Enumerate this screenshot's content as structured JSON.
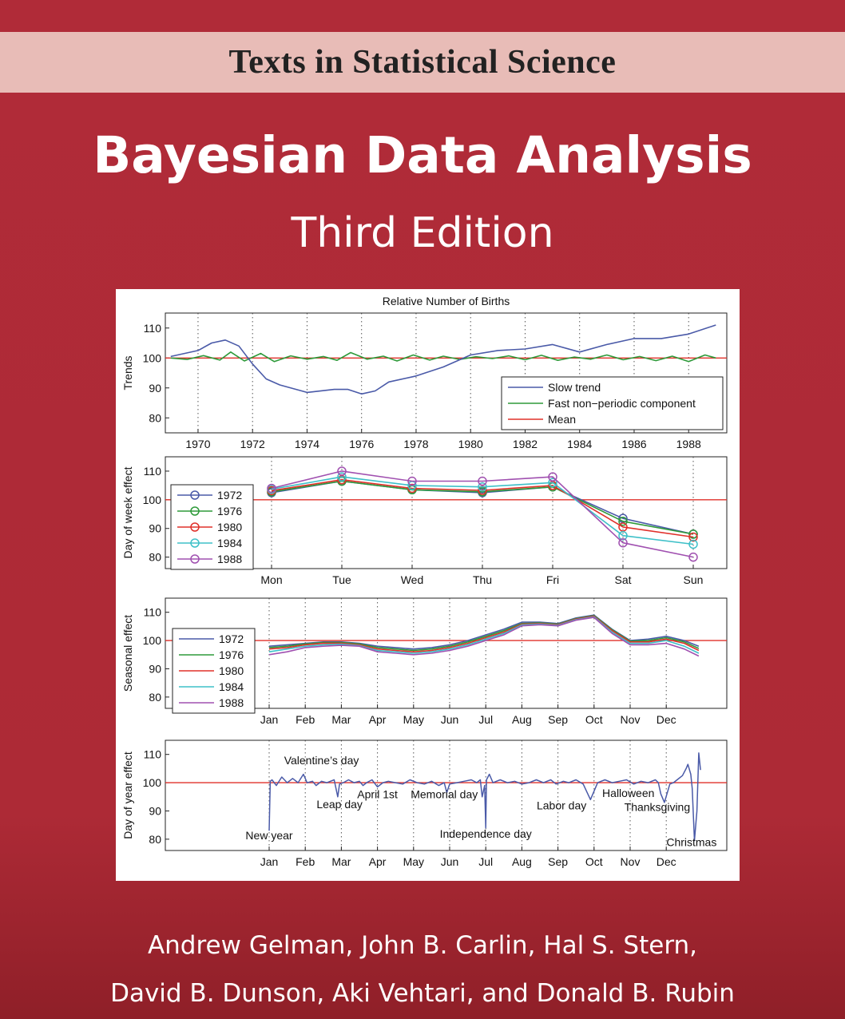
{
  "cover": {
    "series": "Texts in Statistical Science",
    "title": "Bayesian Data Analysis",
    "edition": "Third Edition",
    "authors_line1": "Andrew Gelman, John B. Carlin, Hal S. Stern,",
    "authors_line2": "David B. Dunson, Aki Vehtari, and Donald B. Rubin"
  },
  "colors": {
    "cover_background": "#ad2a36",
    "banner": "#e8bcb7",
    "mean_line": "#e0302a"
  },
  "chart_data": [
    {
      "type": "line",
      "title": "Relative Number of Births",
      "ylabel": "Trends",
      "xlim": [
        1968.8,
        1989.4
      ],
      "ylim": [
        75,
        115
      ],
      "xticks": [
        1970,
        1972,
        1974,
        1976,
        1978,
        1980,
        1982,
        1984,
        1986,
        1988
      ],
      "yticks": [
        80,
        90,
        100,
        110
      ],
      "grid": "vertical dotted",
      "legend_position": "bottom-right",
      "series": [
        {
          "name": "Slow trend",
          "color": "#4a5aa8",
          "x": [
            1969,
            1970,
            1970.5,
            1971,
            1971.5,
            1972,
            1972.5,
            1973,
            1974,
            1975,
            1975.5,
            1976,
            1976.5,
            1977,
            1978,
            1979,
            1980,
            1981,
            1982,
            1983,
            1984,
            1985,
            1986,
            1987,
            1988,
            1989
          ],
          "y": [
            100.5,
            102.5,
            105,
            106,
            104,
            98,
            93,
            91,
            88.5,
            89.5,
            89.5,
            88,
            89,
            92,
            94,
            97,
            101,
            102.5,
            103,
            104.5,
            102,
            104.5,
            106.5,
            106.5,
            108,
            111
          ]
        },
        {
          "name": "Fast non−periodic component",
          "color": "#2e9a3a",
          "x": [
            1969,
            1969.6,
            1970.2,
            1970.8,
            1971.2,
            1971.7,
            1972.3,
            1972.8,
            1973.4,
            1974,
            1974.6,
            1975.1,
            1975.6,
            1976.2,
            1976.8,
            1977.3,
            1977.9,
            1978.5,
            1979,
            1979.6,
            1980.2,
            1980.8,
            1981.4,
            1982,
            1982.6,
            1983.2,
            1983.8,
            1984.4,
            1985,
            1985.6,
            1986.2,
            1986.8,
            1987.4,
            1988,
            1988.6,
            1989
          ],
          "y": [
            100,
            99.5,
            100.8,
            99.3,
            102,
            99,
            101.5,
            98.8,
            100.7,
            99.6,
            100.5,
            99.2,
            101.8,
            99.6,
            100.6,
            99,
            101,
            99.3,
            100.6,
            99.5,
            100.4,
            99.8,
            100.7,
            99.4,
            100.9,
            99.2,
            100.3,
            99.6,
            101,
            99.4,
            100.5,
            99.1,
            100.6,
            98.8,
            101,
            100
          ]
        },
        {
          "name": "Mean",
          "color": "#e0302a",
          "x": [
            1968.8,
            1989.4
          ],
          "y": [
            100,
            100
          ]
        }
      ]
    },
    {
      "type": "line",
      "ylabel": "Day of week effect",
      "categories": [
        "Mon",
        "Tue",
        "Wed",
        "Thu",
        "Fri",
        "Sat",
        "Sun"
      ],
      "ylim": [
        76,
        115
      ],
      "yticks": [
        80,
        90,
        100,
        110
      ],
      "grid": "vertical dotted",
      "legend_position": "left",
      "markers": "circle",
      "reference_line": 100,
      "series": [
        {
          "name": "1972",
          "color": "#4a5aa8",
          "values": [
            102.5,
            106.5,
            103.5,
            102.5,
            104.5,
            93.5,
            88
          ]
        },
        {
          "name": "1976",
          "color": "#2e9a3a",
          "values": [
            102.8,
            106.5,
            103.5,
            102.8,
            104.5,
            92.5,
            88
          ]
        },
        {
          "name": "1980",
          "color": "#e0302a",
          "values": [
            103.2,
            107,
            104,
            103.3,
            105,
            90.5,
            87
          ]
        },
        {
          "name": "1984",
          "color": "#3ec0c8",
          "values": [
            103.7,
            108,
            105,
            104.5,
            106,
            87.5,
            84.5
          ]
        },
        {
          "name": "1988",
          "color": "#a050b0",
          "values": [
            104,
            110,
            106.5,
            106.5,
            108,
            85,
            80
          ]
        }
      ]
    },
    {
      "type": "line",
      "ylabel": "Seasonal effect",
      "months": [
        "Jan",
        "Feb",
        "Mar",
        "Apr",
        "May",
        "Jun",
        "Jul",
        "Aug",
        "Sep",
        "Oct",
        "Nov",
        "Dec"
      ],
      "ylim": [
        76,
        115
      ],
      "yticks": [
        80,
        90,
        100,
        110
      ],
      "grid": "vertical dotted",
      "legend_position": "left",
      "reference_line": 100,
      "series": [
        {
          "name": "1972",
          "color": "#4a5aa8",
          "x": [
            0,
            0.5,
            1,
            1.5,
            2,
            2.5,
            3,
            3.5,
            4,
            4.5,
            5,
            5.5,
            6,
            6.5,
            7,
            7.5,
            8,
            8.5,
            9,
            9.5,
            10,
            10.5,
            11,
            11.5,
            11.9
          ],
          "y": [
            98,
            98.5,
            99,
            99.5,
            99.5,
            99,
            98,
            97.5,
            97,
            97.5,
            98.5,
            100,
            102,
            104,
            106.5,
            106.5,
            106,
            108,
            109,
            104,
            100,
            100.5,
            101.5,
            100,
            98
          ]
        },
        {
          "name": "1976",
          "color": "#2e9a3a",
          "x": [
            0,
            0.5,
            1,
            1.5,
            2,
            2.5,
            3,
            3.5,
            4,
            4.5,
            5,
            5.5,
            6,
            6.5,
            7,
            7.5,
            8,
            8.5,
            9,
            9.5,
            10,
            10.5,
            11,
            11.5,
            11.9
          ],
          "y": [
            97.5,
            98,
            98.8,
            99.3,
            99.3,
            98.8,
            97.5,
            97,
            96.5,
            97,
            98,
            99.5,
            101.5,
            103.5,
            106,
            106.2,
            105.8,
            107.8,
            108.8,
            103.8,
            99.8,
            100,
            101,
            99.5,
            97.2
          ]
        },
        {
          "name": "1980",
          "color": "#e0302a",
          "x": [
            0,
            0.5,
            1,
            1.5,
            2,
            2.5,
            3,
            3.5,
            4,
            4.5,
            5,
            5.5,
            6,
            6.5,
            7,
            7.5,
            8,
            8.5,
            9,
            9.5,
            10,
            10.5,
            11,
            11.5,
            11.9
          ],
          "y": [
            97,
            97.5,
            98.5,
            99,
            99,
            98.5,
            97,
            96.5,
            96,
            96.5,
            97.5,
            99,
            101,
            103,
            105.8,
            106,
            105.6,
            107.6,
            108.6,
            103.5,
            99.5,
            99.5,
            100.5,
            99,
            96.5
          ]
        },
        {
          "name": "1984",
          "color": "#3ec0c8",
          "x": [
            0,
            0.5,
            1,
            1.5,
            2,
            2.5,
            3,
            3.5,
            4,
            4.5,
            5,
            5.5,
            6,
            6.5,
            7,
            7.5,
            8,
            8.5,
            9,
            9.5,
            10,
            10.5,
            11,
            11.5,
            11.9
          ],
          "y": [
            96,
            97,
            98,
            98.5,
            98.7,
            98.2,
            96.5,
            96,
            95.5,
            96,
            97,
            98.5,
            100.5,
            102.5,
            105.5,
            105.8,
            105.4,
            107.4,
            108.4,
            103,
            99,
            99,
            100,
            98,
            95.5
          ]
        },
        {
          "name": "1988",
          "color": "#a050b0",
          "x": [
            0,
            0.5,
            1,
            1.5,
            2,
            2.5,
            3,
            3.5,
            4,
            4.5,
            5,
            5.5,
            6,
            6.5,
            7,
            7.5,
            8,
            8.5,
            9,
            9.5,
            10,
            10.5,
            11,
            11.5,
            11.9
          ],
          "y": [
            95,
            96,
            97.5,
            98,
            98.3,
            98,
            96,
            95.5,
            95,
            95.5,
            96.5,
            98,
            100,
            102,
            105.2,
            105.6,
            105.2,
            107.2,
            108.2,
            102.5,
            98.5,
            98.5,
            99,
            97,
            94.5
          ]
        }
      ]
    },
    {
      "type": "line",
      "ylabel": "Day of year effect",
      "months": [
        "Jan",
        "Feb",
        "Mar",
        "Apr",
        "May",
        "Jun",
        "Jul",
        "Aug",
        "Sep",
        "Oct",
        "Nov",
        "Dec"
      ],
      "ylim": [
        76,
        115
      ],
      "yticks": [
        80,
        90,
        100,
        110
      ],
      "grid": "vertical dotted",
      "reference_line": 100,
      "series": [
        {
          "name": "",
          "color": "#4a5aa8",
          "x": [
            0,
            0.03,
            0.08,
            0.2,
            0.35,
            0.5,
            0.65,
            0.8,
            0.95,
            1.05,
            1.2,
            1.3,
            1.45,
            1.6,
            1.8,
            1.9,
            1.95,
            2.05,
            2.2,
            2.35,
            2.5,
            2.6,
            2.7,
            2.85,
            3.0,
            3.15,
            3.3,
            3.5,
            3.7,
            3.9,
            4.1,
            4.3,
            4.5,
            4.7,
            4.85,
            4.92,
            5.0,
            5.2,
            5.4,
            5.6,
            5.75,
            5.85,
            5.9,
            5.97,
            6.0,
            6.02,
            6.1,
            6.2,
            6.4,
            6.6,
            6.8,
            7.0,
            7.2,
            7.4,
            7.6,
            7.8,
            7.95,
            8.05,
            8.15,
            8.3,
            8.5,
            8.7,
            8.9,
            9.1,
            9.3,
            9.5,
            9.7,
            9.9,
            10.1,
            10.3,
            10.5,
            10.7,
            10.78,
            10.85,
            10.95,
            11.1,
            11.2,
            11.3,
            11.45,
            11.55,
            11.6,
            11.68,
            11.72,
            11.78,
            11.85,
            11.9,
            11.95
          ],
          "y": [
            83,
            100.5,
            101,
            99,
            102,
            100,
            101.5,
            100,
            103,
            100,
            100.5,
            99,
            100.5,
            100,
            101,
            95,
            99.5,
            100,
            101,
            100,
            100.5,
            99,
            100,
            101,
            98.5,
            100,
            100.5,
            100,
            99.5,
            101,
            100,
            99.5,
            100.5,
            99,
            100,
            96.5,
            99.5,
            100,
            100.5,
            101,
            100,
            101,
            95,
            99,
            84,
            101,
            103,
            100,
            101,
            100,
            100.5,
            99.5,
            100,
            101,
            100,
            101,
            99.5,
            100,
            100.5,
            100,
            101,
            99.5,
            94,
            100,
            101,
            100,
            100.5,
            101,
            99.5,
            100.5,
            100,
            101,
            100,
            96,
            93,
            99.5,
            100,
            101,
            102.5,
            105,
            106.5,
            103,
            98,
            79.5,
            90,
            110.5,
            104.5
          ]
        },
        {
          "name": "",
          "color": "#e0302a",
          "x": [
            0,
            12.2
          ],
          "y": [
            100,
            100
          ]
        }
      ],
      "annotations": [
        {
          "text": "New year",
          "x": 0.0,
          "y": 80
        },
        {
          "text": "Valentine’s day",
          "x": 1.45,
          "y": 106.5
        },
        {
          "text": "Leap day",
          "x": 1.95,
          "y": 91
        },
        {
          "text": "April 1st",
          "x": 3.0,
          "y": 94.5
        },
        {
          "text": "Memorial day",
          "x": 4.85,
          "y": 94.5
        },
        {
          "text": "Independence day",
          "x": 6.0,
          "y": 80.5
        },
        {
          "text": "Labor day",
          "x": 8.1,
          "y": 90.5
        },
        {
          "text": "Halloween",
          "x": 9.95,
          "y": 95
        },
        {
          "text": "Thanksgiving",
          "x": 10.75,
          "y": 90
        },
        {
          "text": "Christmas",
          "x": 11.7,
          "y": 77.5
        }
      ]
    }
  ]
}
